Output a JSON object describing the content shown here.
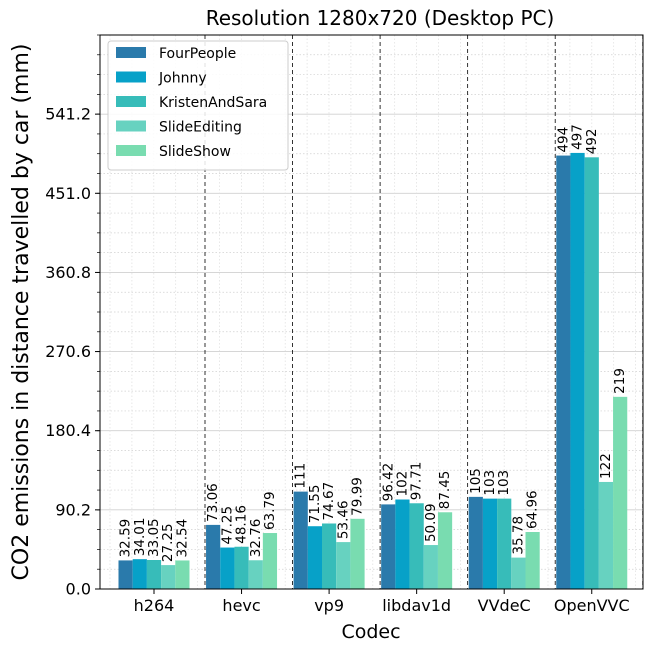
{
  "chart_data": {
    "type": "bar",
    "title": "Resolution 1280x720 (Desktop PC)",
    "xlabel": "Codec",
    "ylabel": "CO2 emissions in distance travelled by car (mm)",
    "categories": [
      "h264",
      "hevc",
      "vp9",
      "libdav1d",
      "VVdeC",
      "OpenVVC"
    ],
    "series": [
      {
        "name": "FourPeople",
        "color": "#2a7aab",
        "values": [
          32.59,
          73.06,
          111,
          96.42,
          105,
          494
        ],
        "labels": [
          "32.59",
          "73.06",
          "111",
          "96.42",
          "105",
          "494"
        ]
      },
      {
        "name": "Johnny",
        "color": "#07a1c8",
        "values": [
          34.01,
          47.25,
          71.55,
          102,
          103,
          497
        ],
        "labels": [
          "34.01",
          "47.25",
          "71.55",
          "102",
          "103",
          "497"
        ]
      },
      {
        "name": "KristenAndSara",
        "color": "#37bcb9",
        "values": [
          33.05,
          48.16,
          74.67,
          97.71,
          103,
          492
        ],
        "labels": [
          "33.05",
          "48.16",
          "74.67",
          "97.71",
          "103",
          "492"
        ]
      },
      {
        "name": "SlideEditing",
        "color": "#67d2c0",
        "values": [
          27.25,
          32.76,
          53.46,
          50.09,
          35.78,
          122
        ],
        "labels": [
          "27.25",
          "32.76",
          "53.46",
          "50.09",
          "35.78",
          "122"
        ]
      },
      {
        "name": "SlideShow",
        "color": "#79dcb0",
        "values": [
          32.54,
          63.79,
          79.99,
          87.45,
          64.96,
          219
        ],
        "labels": [
          "32.54",
          "63.79",
          "79.99",
          "87.45",
          "64.96",
          "219"
        ]
      }
    ],
    "yticks": [
      0.0,
      90.2,
      180.4,
      270.6,
      360.8,
      451.0,
      541.2
    ],
    "ytick_labels": [
      "0.0",
      "90.2",
      "180.4",
      "270.6",
      "360.8",
      "451.0",
      "541.2"
    ],
    "ylim": [
      0,
      631.4
    ],
    "grid": true,
    "legend_position": "top-left"
  }
}
